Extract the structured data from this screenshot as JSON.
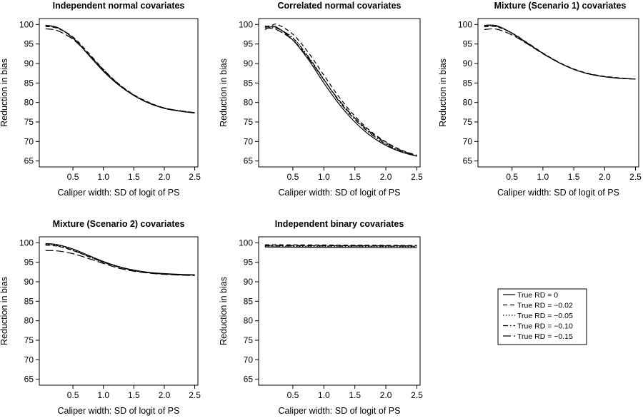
{
  "legend": [
    {
      "label": "True RD = 0",
      "dash": "none"
    },
    {
      "label": "True RD = −0.02",
      "dash": "6,4"
    },
    {
      "label": "True RD = −0.05",
      "dash": "1.5,2.5"
    },
    {
      "label": "True RD = −0.10",
      "dash": "7,3,1.5,3"
    },
    {
      "label": "True RD = −0.15",
      "dash": "11,4"
    }
  ],
  "chart_data": [
    {
      "type": "line",
      "title": "Independent normal covariates",
      "xlabel": "Caliper width: SD of logit of PS",
      "ylabel": "Reduction in bias",
      "xlim": [
        0,
        2.5
      ],
      "ylim": [
        65,
        100
      ],
      "xticks": [
        0.5,
        1.0,
        1.5,
        2.0,
        2.5
      ],
      "xtick_labels": [
        "0.5",
        "1.0",
        "1.5",
        "2.0",
        "2.5"
      ],
      "yticks": [
        65,
        70,
        75,
        80,
        85,
        90,
        95,
        100
      ],
      "x": [
        0.05,
        0.25,
        0.5,
        0.75,
        1.0,
        1.25,
        1.5,
        1.75,
        2.0,
        2.25,
        2.5
      ],
      "series": [
        {
          "name": "True RD = 0",
          "values": [
            99.8,
            99.2,
            96.5,
            92.3,
            88.0,
            84.5,
            81.8,
            79.8,
            78.5,
            77.8,
            77.3
          ]
        },
        {
          "name": "True RD = −0.02",
          "values": [
            99.5,
            99.0,
            96.8,
            92.8,
            88.5,
            84.8,
            82.0,
            80.0,
            78.6,
            77.9,
            77.4
          ]
        },
        {
          "name": "True RD = −0.05",
          "values": [
            99.6,
            99.1,
            96.6,
            92.5,
            88.2,
            84.6,
            81.9,
            79.9,
            78.5,
            77.8,
            77.3
          ]
        },
        {
          "name": "True RD = −0.10",
          "values": [
            99.7,
            99.2,
            96.6,
            92.4,
            88.1,
            84.5,
            81.8,
            79.8,
            78.5,
            77.8,
            77.3
          ]
        },
        {
          "name": "True RD = −0.15",
          "values": [
            98.9,
            98.4,
            96.2,
            92.5,
            88.4,
            84.7,
            81.9,
            79.9,
            78.6,
            77.9,
            77.4
          ]
        }
      ]
    },
    {
      "type": "line",
      "title": "Correlated normal covariates",
      "xlabel": "Caliper width: SD of logit of PS",
      "ylabel": "Reduction in bias",
      "xlim": [
        0,
        2.5
      ],
      "ylim": [
        65,
        100
      ],
      "xticks": [
        0.5,
        1.0,
        1.5,
        2.0,
        2.5
      ],
      "xtick_labels": [
        "0.5",
        "1.0",
        "1.5",
        "2.0",
        "2.5"
      ],
      "yticks": [
        65,
        70,
        75,
        80,
        85,
        90,
        95,
        100
      ],
      "x": [
        0.05,
        0.15,
        0.25,
        0.5,
        0.75,
        1.0,
        1.25,
        1.5,
        1.75,
        2.0,
        2.25,
        2.5
      ],
      "series": [
        {
          "name": "True RD = 0",
          "values": [
            98.7,
            99.4,
            99.2,
            96.0,
            91.0,
            85.0,
            79.5,
            75.0,
            71.5,
            69.0,
            67.3,
            66.2
          ]
        },
        {
          "name": "True RD = −0.02",
          "values": [
            99.5,
            99.7,
            100.0,
            97.5,
            92.8,
            87.0,
            81.3,
            76.5,
            72.7,
            69.9,
            67.8,
            66.5
          ]
        },
        {
          "name": "True RD = −0.05",
          "values": [
            99.6,
            99.4,
            99.1,
            96.6,
            91.8,
            86.0,
            80.3,
            75.8,
            72.1,
            69.4,
            67.5,
            66.3
          ]
        },
        {
          "name": "True RD = −0.10",
          "values": [
            99.5,
            99.3,
            99.0,
            96.5,
            91.7,
            85.9,
            80.2,
            75.6,
            72.0,
            69.3,
            67.4,
            66.2
          ]
        },
        {
          "name": "True RD = −0.15",
          "values": [
            99.2,
            99.0,
            98.6,
            96.0,
            91.4,
            85.8,
            80.5,
            76.0,
            72.4,
            69.7,
            67.7,
            66.4
          ]
        }
      ]
    },
    {
      "type": "line",
      "title": "Mixture (Scenario 1) covariates",
      "xlabel": "Caliper width: SD of logit of PS",
      "ylabel": "Reduction in bias",
      "xlim": [
        0,
        2.5
      ],
      "ylim": [
        65,
        100
      ],
      "xticks": [
        0.5,
        1.0,
        1.5,
        2.0,
        2.5
      ],
      "xtick_labels": [
        "0.5",
        "1.0",
        "1.5",
        "2.0",
        "2.5"
      ],
      "yticks": [
        65,
        70,
        75,
        80,
        85,
        90,
        95,
        100
      ],
      "x": [
        0.05,
        0.25,
        0.5,
        0.75,
        1.0,
        1.25,
        1.5,
        1.75,
        2.0,
        2.25,
        2.5
      ],
      "series": [
        {
          "name": "True RD = 0",
          "values": [
            99.8,
            99.7,
            97.8,
            95.2,
            92.6,
            90.3,
            88.5,
            87.3,
            86.6,
            86.2,
            86.0
          ]
        },
        {
          "name": "True RD = −0.02",
          "values": [
            99.4,
            99.4,
            97.8,
            95.3,
            92.7,
            90.4,
            88.6,
            87.4,
            86.7,
            86.3,
            86.0
          ]
        },
        {
          "name": "True RD = −0.05",
          "values": [
            99.6,
            99.5,
            97.7,
            95.2,
            92.6,
            90.3,
            88.5,
            87.3,
            86.6,
            86.2,
            86.0
          ]
        },
        {
          "name": "True RD = −0.10",
          "values": [
            99.7,
            99.6,
            97.7,
            95.1,
            92.6,
            90.3,
            88.5,
            87.3,
            86.6,
            86.2,
            86.0
          ]
        },
        {
          "name": "True RD = −0.15",
          "values": [
            98.7,
            98.8,
            97.3,
            95.0,
            92.5,
            90.3,
            88.5,
            87.3,
            86.6,
            86.2,
            86.0
          ]
        }
      ]
    },
    {
      "type": "line",
      "title": "Mixture (Scenario 2) covariates",
      "xlabel": "Caliper width: SD of logit of PS",
      "ylabel": "Reduction in bias",
      "xlim": [
        0,
        2.5
      ],
      "ylim": [
        65,
        100
      ],
      "xticks": [
        0.5,
        1.0,
        1.5,
        2.0,
        2.5
      ],
      "xtick_labels": [
        "0.5",
        "1.0",
        "1.5",
        "2.0",
        "2.5"
      ],
      "yticks": [
        65,
        70,
        75,
        80,
        85,
        90,
        95,
        100
      ],
      "x": [
        0.05,
        0.25,
        0.5,
        0.75,
        1.0,
        1.25,
        1.5,
        1.75,
        2.0,
        2.25,
        2.5
      ],
      "series": [
        {
          "name": "True RD = 0",
          "values": [
            99.8,
            99.5,
            98.4,
            96.8,
            95.2,
            93.9,
            93.0,
            92.4,
            92.1,
            91.9,
            91.8
          ]
        },
        {
          "name": "True RD = −0.02",
          "values": [
            99.4,
            99.1,
            98.0,
            96.5,
            95.0,
            93.8,
            92.9,
            92.3,
            92.0,
            91.8,
            91.7
          ]
        },
        {
          "name": "True RD = −0.05",
          "values": [
            99.6,
            99.3,
            98.2,
            96.6,
            95.1,
            93.8,
            92.9,
            92.3,
            92.0,
            91.8,
            91.7
          ]
        },
        {
          "name": "True RD = −0.10",
          "values": [
            99.5,
            99.2,
            98.1,
            96.5,
            95.0,
            93.8,
            92.9,
            92.3,
            92.0,
            91.8,
            91.7
          ]
        },
        {
          "name": "True RD = −0.15",
          "values": [
            98.0,
            97.9,
            97.2,
            96.0,
            94.7,
            93.5,
            92.7,
            92.2,
            91.9,
            91.7,
            91.6
          ]
        }
      ]
    },
    {
      "type": "line",
      "title": "Independent binary covariates",
      "xlabel": "Caliper width: SD of logit of PS",
      "ylabel": "Reduction in bias",
      "xlim": [
        0,
        2.5
      ],
      "ylim": [
        65,
        100
      ],
      "xticks": [
        0.5,
        1.0,
        1.5,
        2.0,
        2.5
      ],
      "xtick_labels": [
        "0.5",
        "1.0",
        "1.5",
        "2.0",
        "2.5"
      ],
      "yticks": [
        65,
        70,
        75,
        80,
        85,
        90,
        95,
        100
      ],
      "x": [
        0.05,
        2.5
      ],
      "series": [
        {
          "name": "True RD = 0",
          "values": [
            98.9,
            98.7
          ]
        },
        {
          "name": "True RD = −0.02",
          "values": [
            99.5,
            99.3
          ]
        },
        {
          "name": "True RD = −0.05",
          "values": [
            99.1,
            99.0
          ]
        },
        {
          "name": "True RD = −0.10",
          "values": [
            99.2,
            99.1
          ]
        },
        {
          "name": "True RD = −0.15",
          "values": [
            99.3,
            99.2
          ]
        }
      ]
    }
  ]
}
